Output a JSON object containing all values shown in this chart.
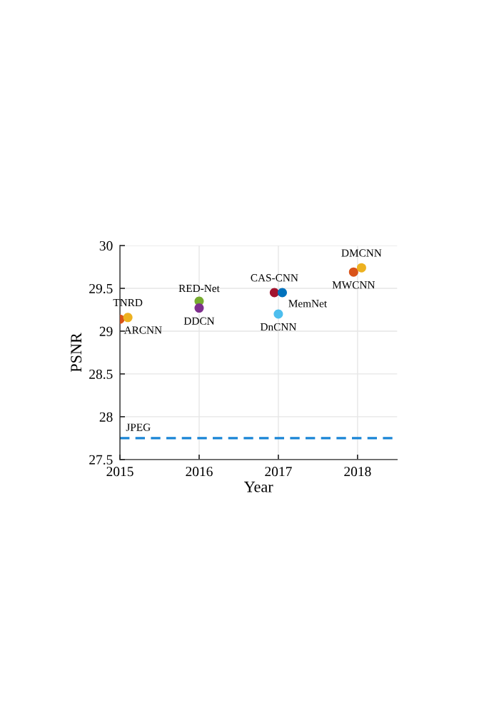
{
  "chart_data": {
    "type": "scatter",
    "xlabel": "Year",
    "ylabel": "PSNR",
    "xlim": [
      2015,
      2018.5
    ],
    "xticks": [
      2015,
      2016,
      2017,
      2018
    ],
    "ylim": [
      27.5,
      30
    ],
    "yticks": [
      27.5,
      28,
      28.5,
      29,
      29.5,
      30
    ],
    "grid": true,
    "marker": "circle",
    "legend": false,
    "series": [
      {
        "name": "ARCNN",
        "color": "#d95319",
        "x": [
          2015.0
        ],
        "values": [
          29.14
        ]
      },
      {
        "name": "TNRD",
        "color": "#edb120",
        "x": [
          2015.1
        ],
        "values": [
          29.16
        ]
      },
      {
        "name": "RED-Net",
        "color": "#77ac30",
        "x": [
          2016.0
        ],
        "values": [
          29.35
        ]
      },
      {
        "name": "DDCN",
        "color": "#7e2f8e",
        "x": [
          2016.0
        ],
        "values": [
          29.27
        ]
      },
      {
        "name": "CAS-CNN",
        "color": "#a2142f",
        "x": [
          2016.95
        ],
        "values": [
          29.45
        ]
      },
      {
        "name": "MemNet",
        "color": "#0072bd",
        "x": [
          2017.05
        ],
        "values": [
          29.45
        ]
      },
      {
        "name": "DnCNN",
        "color": "#4dbeee",
        "x": [
          2017.0
        ],
        "values": [
          29.2
        ]
      },
      {
        "name": "MWCNN",
        "color": "#d95319",
        "x": [
          2017.95
        ],
        "values": [
          29.69
        ]
      },
      {
        "name": "DMCNN",
        "color": "#edb120",
        "x": [
          2018.05
        ],
        "values": [
          29.74
        ]
      }
    ],
    "ref_lines": [
      {
        "axis": "y",
        "value": 27.75,
        "label": "JPEG",
        "color": "#1a85d6",
        "line_style": "dashed"
      }
    ]
  }
}
